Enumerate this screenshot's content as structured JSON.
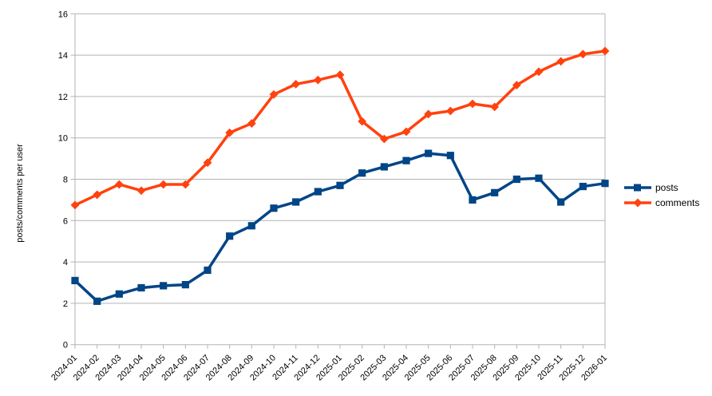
{
  "chart_data": {
    "type": "line",
    "title": "",
    "xlabel": "",
    "ylabel": "posts/comments per user",
    "ylim": [
      0,
      16
    ],
    "ytick_step": 2,
    "grid": true,
    "grid_color": "#b3b3b3",
    "axis_color": "#b3b3b3",
    "background_color": "#ffffff",
    "legend_position": "right",
    "categories": [
      "2024-01",
      "2024-02",
      "2024-03",
      "2024-04",
      "2024-05",
      "2024-06",
      "2024-07",
      "2024-08",
      "2024-09",
      "2024-10",
      "2024-11",
      "2024-12",
      "2025-01",
      "2025-02",
      "2025-03",
      "2025-04",
      "2025-05",
      "2025-06",
      "2025-07",
      "2025-08",
      "2025-09",
      "2025-10",
      "2025-11",
      "2025-12",
      "2026-01"
    ],
    "series": [
      {
        "name": "posts",
        "color": "#004586",
        "marker": "square",
        "values": [
          3.1,
          2.1,
          2.45,
          2.75,
          2.85,
          2.9,
          3.6,
          5.25,
          5.75,
          6.6,
          6.9,
          7.4,
          7.7,
          8.3,
          8.6,
          8.9,
          9.25,
          9.15,
          7.0,
          7.35,
          8.0,
          8.05,
          6.9,
          7.65,
          7.8
        ]
      },
      {
        "name": "comments",
        "color": "#ff420e",
        "marker": "diamond",
        "values": [
          6.75,
          7.25,
          7.75,
          7.45,
          7.75,
          7.75,
          8.8,
          10.25,
          10.7,
          12.1,
          12.6,
          12.8,
          13.05,
          10.8,
          9.95,
          10.3,
          11.15,
          11.3,
          11.65,
          11.5,
          12.55,
          13.2,
          13.7,
          14.05,
          14.2
        ]
      }
    ]
  }
}
